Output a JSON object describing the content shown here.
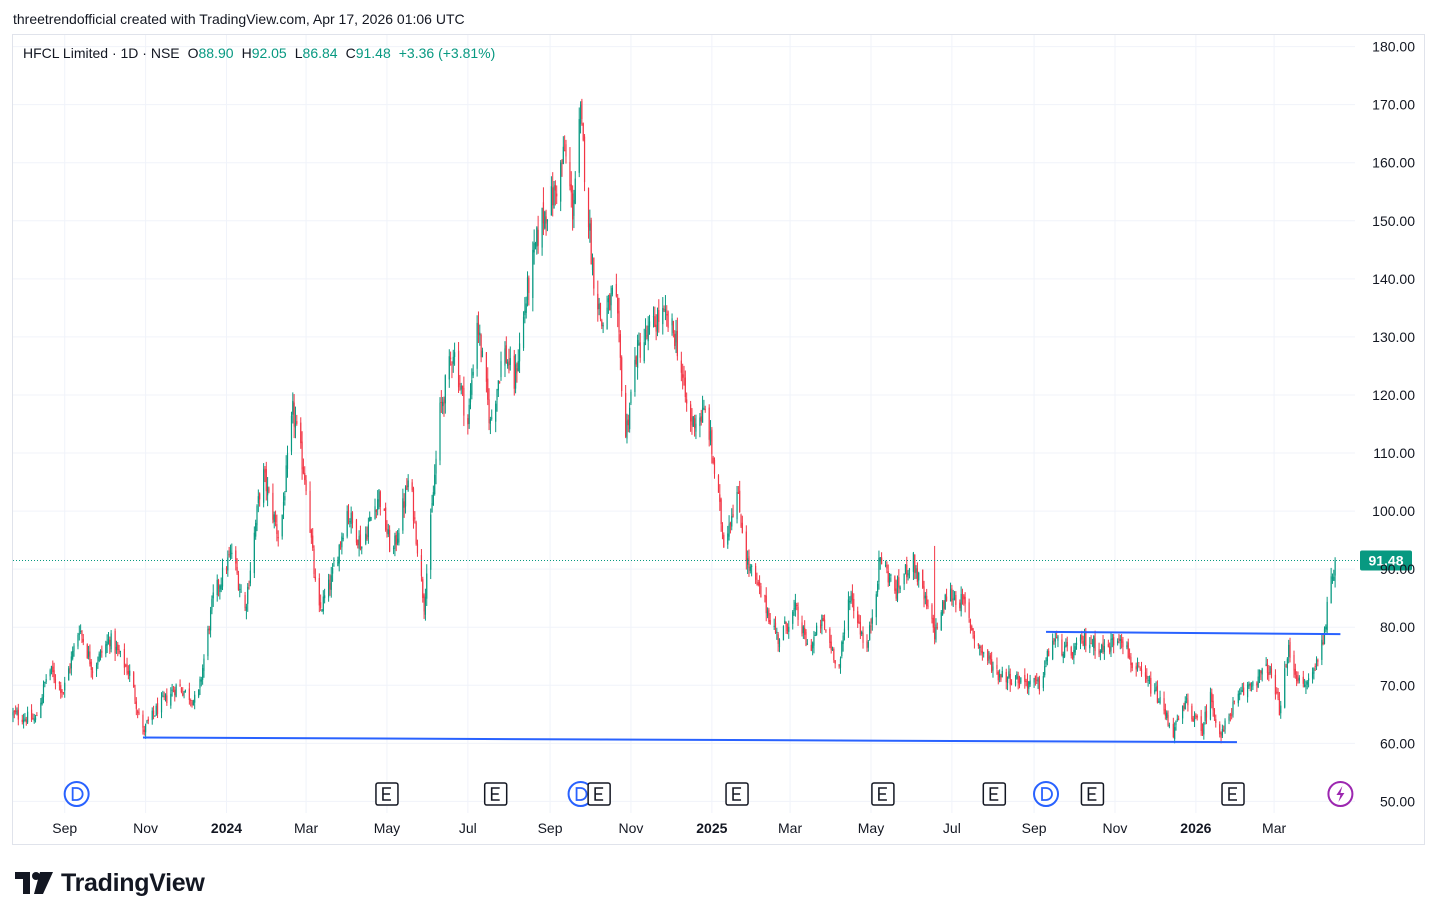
{
  "header": {
    "attribution": "threetrendofficial created with TradingView.com, Apr 17, 2026 01:06 UTC"
  },
  "legend": {
    "symbol": "HFCL Limited · 1D · NSE",
    "open_label": "O",
    "open": "88.90",
    "high_label": "H",
    "high": "92.05",
    "low_label": "L",
    "low": "86.84",
    "close_label": "C",
    "close": "91.48",
    "change": "+3.36 (+3.81%)"
  },
  "footer": {
    "brand": "TradingView"
  },
  "colors": {
    "up": "#089981",
    "down": "#f23645",
    "trendline": "#2962ff",
    "grid": "#f0f3fa",
    "axis_text": "#131722",
    "price_label_bg": "#089981",
    "event_split": "#2962ff",
    "event_earnings": "#131722",
    "event_flash": "#9c27b0"
  },
  "chart_data": {
    "type": "candlestick",
    "symbol": "HFCL Limited",
    "interval": "1D",
    "exchange": "NSE",
    "ylim": [
      48,
      182
    ],
    "yticks": [
      50,
      60,
      70,
      80,
      90,
      100,
      110,
      120,
      130,
      140,
      150,
      160,
      170,
      180
    ],
    "ytick_labels": [
      "50.00",
      "60.00",
      "70.00",
      "80.00",
      "90.00",
      "100.00",
      "110.00",
      "120.00",
      "130.00",
      "140.00",
      "150.00",
      "160.00",
      "170.00",
      "180.00"
    ],
    "xlim": [
      "2023-07-24",
      "2026-05-01"
    ],
    "xticks": [
      {
        "date": "2023-09-01",
        "label": "Sep",
        "bold": false
      },
      {
        "date": "2023-11-01",
        "label": "Nov",
        "bold": false
      },
      {
        "date": "2024-01-01",
        "label": "2024",
        "bold": true
      },
      {
        "date": "2024-03-01",
        "label": "Mar",
        "bold": false
      },
      {
        "date": "2024-05-01",
        "label": "May",
        "bold": false
      },
      {
        "date": "2024-07-01",
        "label": "Jul",
        "bold": false
      },
      {
        "date": "2024-09-01",
        "label": "Sep",
        "bold": false
      },
      {
        "date": "2024-11-01",
        "label": "Nov",
        "bold": false
      },
      {
        "date": "2025-01-01",
        "label": "2025",
        "bold": true
      },
      {
        "date": "2025-03-01",
        "label": "Mar",
        "bold": false
      },
      {
        "date": "2025-05-01",
        "label": "May",
        "bold": false
      },
      {
        "date": "2025-07-01",
        "label": "Jul",
        "bold": false
      },
      {
        "date": "2025-09-01",
        "label": "Sep",
        "bold": false
      },
      {
        "date": "2025-11-01",
        "label": "Nov",
        "bold": false
      },
      {
        "date": "2026-01-01",
        "label": "2026",
        "bold": true
      },
      {
        "date": "2026-03-01",
        "label": "Mar",
        "bold": false
      }
    ],
    "price_path_close": [
      [
        "2023-07-24",
        65
      ],
      [
        "2023-08-10",
        64
      ],
      [
        "2023-08-20",
        73
      ],
      [
        "2023-08-31",
        69
      ],
      [
        "2023-09-12",
        80
      ],
      [
        "2023-09-22",
        73
      ],
      [
        "2023-10-05",
        78
      ],
      [
        "2023-10-20",
        72
      ],
      [
        "2023-10-30",
        62
      ],
      [
        "2023-11-10",
        66
      ],
      [
        "2023-11-25",
        70
      ],
      [
        "2023-12-10",
        67
      ],
      [
        "2023-12-22",
        85
      ],
      [
        "2024-01-05",
        93
      ],
      [
        "2024-01-15",
        83
      ],
      [
        "2024-01-28",
        107
      ],
      [
        "2024-02-10",
        95
      ],
      [
        "2024-02-20",
        117
      ],
      [
        "2024-03-01",
        105
      ],
      [
        "2024-03-10",
        82
      ],
      [
        "2024-03-20",
        88
      ],
      [
        "2024-04-01",
        100
      ],
      [
        "2024-04-12",
        94
      ],
      [
        "2024-04-25",
        103
      ],
      [
        "2024-05-05",
        92
      ],
      [
        "2024-05-18",
        106
      ],
      [
        "2024-05-29",
        84
      ],
      [
        "2024-06-10",
        117
      ],
      [
        "2024-06-20",
        128
      ],
      [
        "2024-07-01",
        115
      ],
      [
        "2024-07-08",
        133
      ],
      [
        "2024-07-18",
        115
      ],
      [
        "2024-07-28",
        128
      ],
      [
        "2024-08-05",
        122
      ],
      [
        "2024-08-15",
        138
      ],
      [
        "2024-08-25",
        150
      ],
      [
        "2024-09-05",
        155
      ],
      [
        "2024-09-12",
        162
      ],
      [
        "2024-09-18",
        152
      ],
      [
        "2024-09-24",
        168
      ],
      [
        "2024-10-03",
        142
      ],
      [
        "2024-10-10",
        132
      ],
      [
        "2024-10-20",
        138
      ],
      [
        "2024-10-28",
        113
      ],
      [
        "2024-11-05",
        127
      ],
      [
        "2024-11-15",
        131
      ],
      [
        "2024-11-24",
        134
      ],
      [
        "2024-12-05",
        130
      ],
      [
        "2024-12-15",
        115
      ],
      [
        "2024-12-28",
        117
      ],
      [
        "2025-01-10",
        95
      ],
      [
        "2025-01-20",
        103
      ],
      [
        "2025-01-28",
        91
      ],
      [
        "2025-02-10",
        84
      ],
      [
        "2025-02-20",
        78
      ],
      [
        "2025-03-05",
        83
      ],
      [
        "2025-03-15",
        76
      ],
      [
        "2025-03-25",
        81
      ],
      [
        "2025-04-07",
        73
      ],
      [
        "2025-04-15",
        86
      ],
      [
        "2025-04-28",
        76
      ],
      [
        "2025-05-08",
        92
      ],
      [
        "2025-05-20",
        86
      ],
      [
        "2025-06-01",
        92
      ],
      [
        "2025-06-10",
        85
      ],
      [
        "2025-06-18",
        79
      ],
      [
        "2025-06-28",
        86
      ],
      [
        "2025-07-10",
        84
      ],
      [
        "2025-07-20",
        77
      ],
      [
        "2025-08-05",
        72
      ],
      [
        "2025-08-20",
        71
      ],
      [
        "2025-09-05",
        70
      ],
      [
        "2025-09-15",
        78
      ],
      [
        "2025-09-28",
        75
      ],
      [
        "2025-10-10",
        78
      ],
      [
        "2025-10-25",
        76
      ],
      [
        "2025-11-05",
        79
      ],
      [
        "2025-11-15",
        73
      ],
      [
        "2025-12-01",
        69
      ],
      [
        "2025-12-15",
        62
      ],
      [
        "2025-12-25",
        67
      ],
      [
        "2026-01-05",
        62
      ],
      [
        "2026-01-12",
        68
      ],
      [
        "2026-01-20",
        61
      ],
      [
        "2026-01-28",
        66
      ],
      [
        "2026-02-10",
        70
      ],
      [
        "2026-02-25",
        73
      ],
      [
        "2026-03-05",
        66
      ],
      [
        "2026-03-12",
        76
      ],
      [
        "2026-03-22",
        69
      ],
      [
        "2026-03-30",
        72
      ],
      [
        "2026-04-06",
        77
      ],
      [
        "2026-04-12",
        86
      ],
      [
        "2026-04-16",
        91.48
      ]
    ],
    "notable_extremes": [
      {
        "date": "2023-10-30",
        "low": 61.5
      },
      {
        "date": "2024-02-22",
        "high": 118
      },
      {
        "date": "2024-09-25",
        "high": 171
      },
      {
        "date": "2025-06-18",
        "high": 94
      },
      {
        "date": "2026-01-20",
        "low": 60
      }
    ],
    "last_candle": {
      "date": "2026-04-16",
      "open": 88.9,
      "high": 92.05,
      "low": 86.84,
      "close": 91.48
    },
    "last_price_label": "91.48",
    "last_price_line": 91.48,
    "trendlines": [
      {
        "from": [
          "2023-10-30",
          61
        ],
        "to": [
          "2026-02-01",
          60.2
        ]
      },
      {
        "from": [
          "2025-09-10",
          79.2
        ],
        "to": [
          "2026-04-20",
          78.8
        ]
      }
    ],
    "events": [
      {
        "date": "2023-09-10",
        "type": "D"
      },
      {
        "date": "2024-05-01",
        "type": "E"
      },
      {
        "date": "2024-07-22",
        "type": "E"
      },
      {
        "date": "2024-09-24",
        "type": "D"
      },
      {
        "date": "2024-10-08",
        "type": "E"
      },
      {
        "date": "2025-01-20",
        "type": "E"
      },
      {
        "date": "2025-05-10",
        "type": "E"
      },
      {
        "date": "2025-08-02",
        "type": "E"
      },
      {
        "date": "2025-09-10",
        "type": "D"
      },
      {
        "date": "2025-10-15",
        "type": "E"
      },
      {
        "date": "2026-01-29",
        "type": "E"
      },
      {
        "date": "2026-04-20",
        "type": "flash"
      }
    ],
    "grid": true
  }
}
